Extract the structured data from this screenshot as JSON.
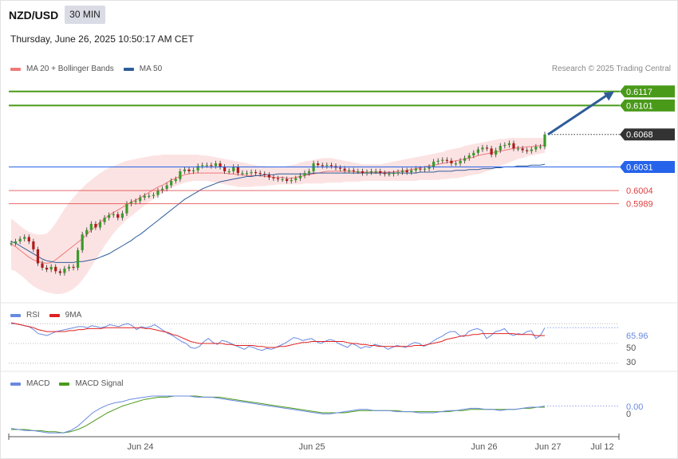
{
  "header": {
    "symbol": "NZD/USD",
    "timeframe": "30 MIN",
    "datetime": "Thursday, June 26, 2025 10:50:17 AM CET",
    "credit": "Research © 2025 Trading Central"
  },
  "colors": {
    "ma20": "#f07a7a",
    "ma50": "#2f5d9a",
    "band_fill": "#fcdede",
    "resistance": "#4a9a1a",
    "support_blue": "#2563eb",
    "support_red": "#e04040",
    "current": "#333333",
    "rsi": "#6a8ae0",
    "rsi_ma": "#e02020",
    "macd": "#6a8ae0",
    "macd_signal": "#4a9a1a",
    "arrow": "#2f5d9a",
    "candle_up": "#3a9a2a",
    "candle_down": "#b01a1a"
  },
  "chart_data": [
    {
      "type": "candlestick",
      "name": "price",
      "legend": [
        {
          "label": "MA 20 + Bollinger Bands",
          "color": "#f07a7a"
        },
        {
          "label": "MA 50",
          "color": "#2f5d9a"
        }
      ],
      "x_ticks": [
        "Jun 24",
        "Jun 25",
        "Jun 26",
        "Jun 27",
        "Jul 12"
      ],
      "ylim": [
        0.5876,
        0.6135
      ],
      "levels": [
        {
          "value": 0.6117,
          "label": "0.6117",
          "kind": "resistance"
        },
        {
          "value": 0.6101,
          "label": "0.6101",
          "kind": "resistance"
        },
        {
          "value": 0.6068,
          "label": "0.6068",
          "kind": "current"
        },
        {
          "value": 0.6031,
          "label": "0.6031",
          "kind": "support_blue"
        },
        {
          "value": 0.6004,
          "label": "0.6004",
          "kind": "support_red"
        },
        {
          "value": 0.5989,
          "label": "0.5989",
          "kind": "support_red"
        }
      ],
      "close": [
        0.5944,
        0.5946,
        0.5949,
        0.5951,
        0.5946,
        0.5937,
        0.5921,
        0.5916,
        0.5914,
        0.5917,
        0.5912,
        0.591,
        0.5915,
        0.5917,
        0.5916,
        0.5936,
        0.5954,
        0.5959,
        0.5966,
        0.5962,
        0.5968,
        0.5973,
        0.5976,
        0.5977,
        0.5973,
        0.5978,
        0.5989,
        0.5991,
        0.5992,
        0.5996,
        0.5998,
        0.5998,
        0.5999,
        0.6004,
        0.6006,
        0.601,
        0.6015,
        0.6017,
        0.6026,
        0.6028,
        0.6026,
        0.6027,
        0.6032,
        0.6033,
        0.6033,
        0.6032,
        0.6035,
        0.6031,
        0.6026,
        0.6026,
        0.6031,
        0.6024,
        0.6024,
        0.6024,
        0.6025,
        0.6024,
        0.6023,
        0.6022,
        0.6019,
        0.6018,
        0.6017,
        0.6017,
        0.6015,
        0.6016,
        0.6018,
        0.6021,
        0.6024,
        0.6026,
        0.6035,
        0.6033,
        0.6032,
        0.6033,
        0.6032,
        0.603,
        0.6029,
        0.6027,
        0.6027,
        0.6026,
        0.6026,
        0.6024,
        0.6025,
        0.6026,
        0.6026,
        0.6024,
        0.6023,
        0.6023,
        0.6024,
        0.6025,
        0.6027,
        0.6025,
        0.6027,
        0.6029,
        0.6028,
        0.6029,
        0.6031,
        0.6037,
        0.6038,
        0.6039,
        0.6038,
        0.6035,
        0.6035,
        0.6038,
        0.6041,
        0.6044,
        0.6047,
        0.6051,
        0.6053,
        0.6052,
        0.6045,
        0.605,
        0.6055,
        0.6056,
        0.6058,
        0.6052,
        0.6052,
        0.605,
        0.6049,
        0.6051,
        0.6054,
        0.6054,
        0.6068
      ],
      "ma20": [
        0.5943,
        0.594,
        0.5936,
        0.5932,
        0.5928,
        0.5925,
        0.5923,
        0.5922,
        0.5921,
        0.5922,
        0.5925,
        0.5929,
        0.5933,
        0.5937,
        0.5941,
        0.5945,
        0.5949,
        0.5954,
        0.5959,
        0.5963,
        0.5968,
        0.5972,
        0.5976,
        0.5979,
        0.5982,
        0.5985,
        0.5988,
        0.5991,
        0.5993,
        0.5996,
        0.5999,
        0.6002,
        0.6005,
        0.6008,
        0.601,
        0.6013,
        0.6016,
        0.6018,
        0.602,
        0.6022,
        0.6023,
        0.6024,
        0.6024,
        0.6024,
        0.6024,
        0.6024,
        0.6024,
        0.6024,
        0.6024,
        0.6023,
        0.6023,
        0.6022,
        0.6022,
        0.6021,
        0.6021,
        0.6021,
        0.6021,
        0.602,
        0.602,
        0.6019,
        0.6019,
        0.6019,
        0.6018,
        0.6018,
        0.6019,
        0.602,
        0.6021,
        0.6022,
        0.6023,
        0.6024,
        0.6025,
        0.6026,
        0.6026,
        0.6026,
        0.6026,
        0.6026,
        0.6026,
        0.6026,
        0.6025,
        0.6025,
        0.6025,
        0.6025,
        0.6025,
        0.6025,
        0.6025,
        0.6025,
        0.6025,
        0.6026,
        0.6026,
        0.6027,
        0.6028,
        0.6029,
        0.603,
        0.6031,
        0.6032,
        0.6033,
        0.6034,
        0.6035,
        0.6036,
        0.6037,
        0.6038,
        0.6039,
        0.604,
        0.6041,
        0.6042,
        0.6044,
        0.6045,
        0.6046,
        0.6047,
        0.6048,
        0.6049,
        0.605,
        0.6051,
        0.6052,
        0.6053,
        0.6053,
        0.6054,
        0.6054,
        0.6055,
        0.6055,
        0.6056
      ],
      "band_upper": [
        0.5972,
        0.5968,
        0.5964,
        0.596,
        0.5957,
        0.5955,
        0.5954,
        0.5954,
        0.5955,
        0.596,
        0.5967,
        0.5975,
        0.5983,
        0.599,
        0.5996,
        0.6002,
        0.6007,
        0.6012,
        0.6016,
        0.602,
        0.6024,
        0.6027,
        0.603,
        0.6032,
        0.6034,
        0.6036,
        0.6038,
        0.6039,
        0.604,
        0.6041,
        0.6042,
        0.6043,
        0.6044,
        0.6044,
        0.6045,
        0.6045,
        0.6045,
        0.6045,
        0.6045,
        0.6045,
        0.6045,
        0.6045,
        0.6045,
        0.6044,
        0.6044,
        0.6043,
        0.6042,
        0.6041,
        0.604,
        0.6039,
        0.6038,
        0.6037,
        0.6036,
        0.6035,
        0.6034,
        0.6033,
        0.6032,
        0.6032,
        0.6031,
        0.6031,
        0.603,
        0.6031,
        0.6032,
        0.6033,
        0.6034,
        0.6036,
        0.6037,
        0.6038,
        0.6039,
        0.604,
        0.6041,
        0.6041,
        0.6041,
        0.604,
        0.6039,
        0.6038,
        0.6037,
        0.6036,
        0.6035,
        0.6034,
        0.6034,
        0.6034,
        0.6034,
        0.6034,
        0.6035,
        0.6036,
        0.6037,
        0.6038,
        0.6039,
        0.604,
        0.6041,
        0.6042,
        0.6043,
        0.6044,
        0.6045,
        0.6046,
        0.6047,
        0.6048,
        0.605,
        0.6051,
        0.6052,
        0.6053,
        0.6055,
        0.6056,
        0.6057,
        0.6058,
        0.6059,
        0.606,
        0.6061,
        0.6062,
        0.6063,
        0.6063,
        0.6064,
        0.6064,
        0.6064,
        0.6064,
        0.6064,
        0.6064,
        0.6064,
        0.6064,
        0.6064
      ],
      "band_lower": [
        0.5914,
        0.5912,
        0.5908,
        0.5904,
        0.5899,
        0.5895,
        0.5892,
        0.589,
        0.5888,
        0.5887,
        0.5886,
        0.5886,
        0.5887,
        0.5889,
        0.5892,
        0.5896,
        0.5902,
        0.5909,
        0.5917,
        0.5925,
        0.5933,
        0.5941,
        0.5948,
        0.5955,
        0.5961,
        0.5966,
        0.5971,
        0.5975,
        0.5979,
        0.5983,
        0.5987,
        0.5991,
        0.5994,
        0.5998,
        0.6001,
        0.6004,
        0.6007,
        0.6009,
        0.6011,
        0.6013,
        0.6014,
        0.6015,
        0.6015,
        0.6015,
        0.6015,
        0.6014,
        0.6013,
        0.6012,
        0.6011,
        0.601,
        0.6009,
        0.6008,
        0.6008,
        0.6008,
        0.6008,
        0.6009,
        0.6009,
        0.6009,
        0.601,
        0.601,
        0.6011,
        0.6011,
        0.6011,
        0.6011,
        0.6011,
        0.6011,
        0.6012,
        0.6012,
        0.6012,
        0.6012,
        0.6012,
        0.6013,
        0.6013,
        0.6013,
        0.6013,
        0.6014,
        0.6014,
        0.6014,
        0.6014,
        0.6015,
        0.6015,
        0.6015,
        0.6015,
        0.6015,
        0.6015,
        0.6015,
        0.6015,
        0.6015,
        0.6015,
        0.6015,
        0.6015,
        0.6015,
        0.6016,
        0.6016,
        0.6016,
        0.6016,
        0.6016,
        0.6017,
        0.6017,
        0.6018,
        0.6018,
        0.6019,
        0.602,
        0.6021,
        0.6022,
        0.6023,
        0.6024,
        0.6026,
        0.6028,
        0.603,
        0.6032,
        0.6034,
        0.6036,
        0.6038,
        0.604,
        0.6041,
        0.6043,
        0.6044,
        0.6045,
        0.6046,
        0.6047
      ],
      "ma50": [
        0.5946,
        0.5944,
        0.5941,
        0.5938,
        0.5935,
        0.5932,
        0.5929,
        0.5926,
        0.5924,
        0.5923,
        0.5922,
        0.5922,
        0.5922,
        0.5922,
        0.5922,
        0.5923,
        0.5923,
        0.5924,
        0.5925,
        0.5926,
        0.5928,
        0.593,
        0.5932,
        0.5935,
        0.5938,
        0.5941,
        0.5944,
        0.5947,
        0.5951,
        0.5954,
        0.5958,
        0.5962,
        0.5966,
        0.597,
        0.5974,
        0.5978,
        0.5982,
        0.5986,
        0.599,
        0.5994,
        0.5997,
        0.6,
        0.6003,
        0.6006,
        0.6008,
        0.601,
        0.6012,
        0.6014,
        0.6015,
        0.6016,
        0.6017,
        0.6018,
        0.6019,
        0.602,
        0.602,
        0.6021,
        0.6021,
        0.6022,
        0.6022,
        0.6022,
        0.6023,
        0.6023,
        0.6023,
        0.6023,
        0.6023,
        0.6023,
        0.6023,
        0.6023,
        0.6024,
        0.6024,
        0.6024,
        0.6024,
        0.6024,
        0.6024,
        0.6024,
        0.6024,
        0.6024,
        0.6024,
        0.6024,
        0.6024,
        0.6024,
        0.6024,
        0.6024,
        0.6024,
        0.6024,
        0.6024,
        0.6024,
        0.6024,
        0.6024,
        0.6024,
        0.6024,
        0.6024,
        0.6025,
        0.6025,
        0.6025,
        0.6025,
        0.6026,
        0.6026,
        0.6026,
        0.6026,
        0.6027,
        0.6027,
        0.6027,
        0.6028,
        0.6028,
        0.6028,
        0.6029,
        0.6029,
        0.6029,
        0.603,
        0.603,
        0.6031,
        0.6031,
        0.6031,
        0.6032,
        0.6032,
        0.6032,
        0.6033,
        0.6033,
        0.6033,
        0.6034
      ]
    },
    {
      "type": "line",
      "name": "rsi",
      "legend": [
        {
          "label": "RSI",
          "color": "#6a8ae0"
        },
        {
          "label": "9MA",
          "color": "#e02020"
        }
      ],
      "ylim": [
        25,
        75
      ],
      "y_ticks": [
        "50",
        "30"
      ],
      "last_value": "65.96",
      "series": [
        {
          "name": "RSI",
          "values": [
            70,
            70,
            69,
            68,
            67,
            64,
            60,
            59,
            58,
            60,
            62,
            63,
            64,
            65,
            66,
            67,
            67,
            66,
            68,
            67,
            66,
            67,
            69,
            68,
            67,
            69,
            70,
            68,
            64,
            67,
            66,
            67,
            69,
            66,
            63,
            60,
            58,
            55,
            52,
            50,
            46,
            45,
            47,
            52,
            55,
            51,
            49,
            53,
            52,
            50,
            48,
            46,
            44,
            47,
            46,
            44,
            43,
            45,
            44,
            46,
            48,
            50,
            53,
            56,
            55,
            53,
            54,
            55,
            52,
            50,
            52,
            54,
            53,
            50,
            48,
            46,
            50,
            48,
            45,
            47,
            46,
            49,
            48,
            47,
            44,
            46,
            48,
            47,
            46,
            49,
            51,
            50,
            47,
            49,
            52,
            55,
            57,
            60,
            62,
            62,
            58,
            57,
            62,
            64,
            65,
            63,
            55,
            58,
            62,
            63,
            65,
            60,
            58,
            60,
            59,
            62,
            63,
            55,
            58,
            66
          ]
        },
        {
          "name": "9MA",
          "values": [
            71,
            70,
            69,
            68,
            67,
            66,
            64,
            63,
            62,
            62,
            62,
            62,
            62,
            63,
            63,
            64,
            64,
            65,
            65,
            65,
            65,
            66,
            66,
            66,
            66,
            66,
            66,
            66,
            66,
            66,
            65,
            65,
            64,
            63,
            62,
            61,
            59,
            58,
            56,
            54,
            52,
            51,
            50,
            50,
            50,
            50,
            50,
            50,
            49,
            49,
            48,
            48,
            48,
            48,
            48,
            47,
            47,
            46,
            46,
            46,
            47,
            47,
            48,
            49,
            50,
            51,
            51,
            52,
            52,
            52,
            52,
            52,
            52,
            52,
            52,
            51,
            50,
            50,
            49,
            49,
            48,
            48,
            47,
            47,
            47,
            47,
            47,
            47,
            47,
            47,
            48,
            48,
            48,
            49,
            50,
            51,
            52,
            54,
            55,
            56,
            57,
            58,
            58,
            59,
            59,
            60,
            60,
            60,
            60,
            60,
            60,
            60,
            60,
            59,
            59,
            59,
            59,
            58,
            58,
            58
          ]
        }
      ]
    },
    {
      "type": "line",
      "name": "macd",
      "legend": [
        {
          "label": "MACD",
          "color": "#6a8ae0"
        },
        {
          "label": "MACD Signal",
          "color": "#4a9a1a"
        }
      ],
      "ylim": [
        -0.0024,
        0.0016
      ],
      "y_ticks": [
        "0"
      ],
      "last_value": "0.00",
      "series": [
        {
          "name": "MACD",
          "values": [
            -0.0018,
            -0.0019,
            -0.002,
            -0.002,
            -0.0021,
            -0.0022,
            -0.0022,
            -0.0022,
            -0.002,
            -0.0016,
            -0.001,
            -0.0004,
            0.0,
            0.0003,
            0.0005,
            0.0006,
            0.0008,
            0.0009,
            0.001,
            0.0011,
            0.0011,
            0.0011,
            0.0011,
            0.0011,
            0.0011,
            0.001,
            0.001,
            0.001,
            0.0009,
            0.0008,
            0.0007,
            0.0006,
            0.0005,
            0.0004,
            0.0003,
            0.0002,
            0.0001,
            0.0,
            -0.0001,
            -0.0002,
            -0.0003,
            -0.0004,
            -0.0005,
            -0.0005,
            -0.0004,
            -0.0003,
            -0.0002,
            -0.0001,
            -0.0001,
            -0.0002,
            -0.0002,
            -0.0002,
            -0.0003,
            -0.0003,
            -0.0003,
            -0.0004,
            -0.0004,
            -0.0004,
            -0.0003,
            -0.0002,
            -0.0002,
            -0.0001,
            0.0,
            0.0,
            -0.0001,
            -0.0001,
            -0.0002,
            -0.0001,
            -0.0001,
            0.0,
            0.0001,
            0.0001,
            0.0002
          ]
        },
        {
          "name": "MACD Signal",
          "values": [
            -0.0019,
            -0.0019,
            -0.0019,
            -0.002,
            -0.002,
            -0.0021,
            -0.0021,
            -0.0022,
            -0.0021,
            -0.0019,
            -0.0016,
            -0.0012,
            -0.0008,
            -0.0004,
            -0.0001,
            0.0002,
            0.0004,
            0.0006,
            0.0008,
            0.0009,
            0.001,
            0.001,
            0.0011,
            0.0011,
            0.0011,
            0.0011,
            0.001,
            0.001,
            0.001,
            0.0009,
            0.0008,
            0.0007,
            0.0006,
            0.0005,
            0.0004,
            0.0003,
            0.0002,
            0.0001,
            0.0,
            -0.0001,
            -0.0002,
            -0.0003,
            -0.0004,
            -0.0004,
            -0.0004,
            -0.0004,
            -0.0003,
            -0.0002,
            -0.0002,
            -0.0002,
            -0.0002,
            -0.0002,
            -0.0002,
            -0.0003,
            -0.0003,
            -0.0003,
            -0.0003,
            -0.0003,
            -0.0003,
            -0.0003,
            -0.0002,
            -0.0002,
            -0.0001,
            -0.0001,
            -0.0001,
            -0.0001,
            -0.0001,
            -0.0001,
            -0.0001,
            0.0,
            0.0,
            0.0001,
            0.0001
          ]
        }
      ]
    }
  ]
}
